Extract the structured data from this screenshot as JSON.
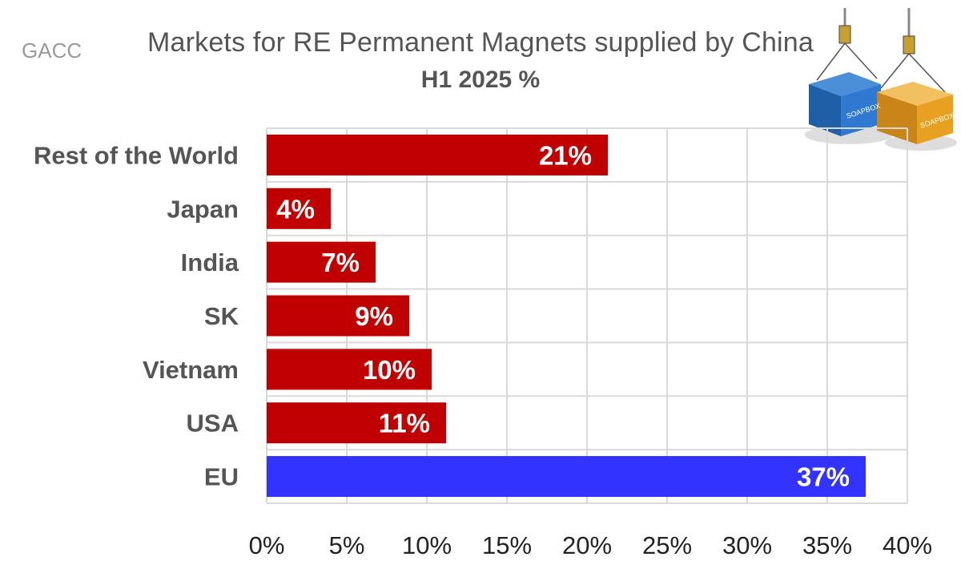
{
  "source_label": "GACC",
  "chart_data": {
    "type": "bar",
    "orientation": "horizontal",
    "title": "Markets for RE Permanent Magnets supplied by China",
    "subtitle": "H1 2025 %",
    "categories": [
      "Rest of the World",
      "Japan",
      "India",
      "SK",
      "Vietnam",
      "USA",
      "EU"
    ],
    "values": [
      21.3,
      4.0,
      6.8,
      8.9,
      10.3,
      11.2,
      37.4
    ],
    "data_labels": [
      "21%",
      "4%",
      "7%",
      "9%",
      "10%",
      "11%",
      "37%"
    ],
    "bar_colors": [
      "#c00000",
      "#c00000",
      "#c00000",
      "#c00000",
      "#c00000",
      "#c00000",
      "#3333ff"
    ],
    "xlim": [
      0,
      40
    ],
    "x_ticks": [
      "0%",
      "5%",
      "10%",
      "15%",
      "20%",
      "25%",
      "30%",
      "35%",
      "40%"
    ],
    "xlabel": "",
    "ylabel": "",
    "grid": true,
    "legend": "none"
  },
  "logo": {
    "text": "SOAPBOX",
    "colors": [
      "#1f6fc0",
      "#e8a020"
    ]
  }
}
